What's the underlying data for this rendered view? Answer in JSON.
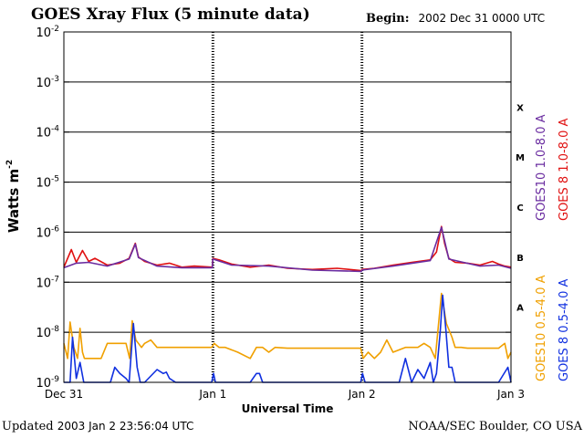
{
  "header": {
    "title": "GOES Xray Flux (5 minute data)",
    "begin_label": "Begin:",
    "begin_value": "2002 Dec 31 0000 UTC"
  },
  "footer": {
    "updated_label": "Updated",
    "updated_value": "2003 Jan  2 23:56:04 UTC",
    "credit": "NOAA/SEC Boulder, CO USA"
  },
  "chart_data": {
    "type": "line",
    "title": "GOES Xray Flux (5 minute data)",
    "xlabel": "Universal Time",
    "ylabel": "Watts m",
    "ylabel_sup": "-2",
    "y_scale": "log",
    "y_decades": [
      {
        "base": "10",
        "exp": "-2"
      },
      {
        "base": "10",
        "exp": "-3"
      },
      {
        "base": "10",
        "exp": "-4"
      },
      {
        "base": "10",
        "exp": "-5"
      },
      {
        "base": "10",
        "exp": "-6"
      },
      {
        "base": "10",
        "exp": "-7"
      },
      {
        "base": "10",
        "exp": "-8"
      },
      {
        "base": "10",
        "exp": "-9"
      }
    ],
    "ylim": [
      1e-09,
      0.01
    ],
    "x_tick_labels": [
      "Dec 31",
      "Jan 1",
      "Jan 2",
      "Jan 3"
    ],
    "xlim_hours": [
      0,
      72
    ],
    "flare_classes": [
      "X",
      "M",
      "C",
      "B",
      "A"
    ],
    "grid": "horizontal decade lines and dotted day separators",
    "legend_right": {
      "long": [
        "GOES10 1.0-8.0 A",
        "GOES 8 1.0-8.0 A"
      ],
      "short": [
        "GOES10 0.5-4.0 A",
        "GOES 8 0.5-4.0 A"
      ]
    },
    "colors": {
      "goes10_long": "#6a2ca0",
      "goes8_long": "#e01010",
      "goes10_short": "#f0a000",
      "goes8_short": "#1030e0",
      "axes": "#000000"
    },
    "series": [
      {
        "name": "GOES 8 1.0-8.0 A",
        "color": "#e01010",
        "x": [
          0,
          1.2,
          2,
          3,
          4,
          5,
          7,
          9,
          10.5,
          11.5,
          12,
          13,
          15,
          17,
          19,
          21,
          23.9,
          24,
          25,
          27,
          30,
          33,
          36,
          40,
          44,
          46,
          47.9,
          48,
          50,
          53,
          56,
          59,
          60,
          60.8,
          61.3,
          62,
          63,
          65,
          67,
          69,
          70,
          71,
          72
        ],
        "y": [
          2e-07,
          4.5e-07,
          2.5e-07,
          4.3e-07,
          2.6e-07,
          3e-07,
          2.2e-07,
          2.4e-07,
          3e-07,
          6e-07,
          3.2e-07,
          2.6e-07,
          2.2e-07,
          2.4e-07,
          2e-07,
          2.1e-07,
          2e-07,
          3e-07,
          2.8e-07,
          2.3e-07,
          2e-07,
          2.2e-07,
          1.9e-07,
          1.8e-07,
          1.9e-07,
          1.8e-07,
          1.7e-07,
          1.8e-07,
          1.9e-07,
          2.2e-07,
          2.5e-07,
          2.8e-07,
          4e-07,
          1.3e-06,
          6e-07,
          3e-07,
          2.5e-07,
          2.4e-07,
          2.2e-07,
          2.6e-07,
          2.3e-07,
          2.1e-07,
          2e-07
        ]
      },
      {
        "name": "GOES10 1.0-8.0 A",
        "color": "#6a2ca0",
        "x": [
          0,
          2,
          4,
          7,
          10.5,
          11.5,
          12,
          15,
          19,
          23.9,
          24,
          27,
          33,
          40,
          47.9,
          48,
          53,
          59,
          60.8,
          62,
          67,
          70,
          72
        ],
        "y": [
          1.95e-07,
          2.4e-07,
          2.5e-07,
          2.1e-07,
          2.9e-07,
          5.8e-07,
          3.1e-07,
          2.1e-07,
          1.95e-07,
          1.95e-07,
          2.9e-07,
          2.2e-07,
          2.1e-07,
          1.75e-07,
          1.65e-07,
          1.75e-07,
          2.1e-07,
          2.7e-07,
          1.25e-06,
          2.9e-07,
          2.1e-07,
          2.2e-07,
          1.9e-07
        ]
      },
      {
        "name": "GOES10 0.5-4.0 A",
        "color": "#f0a000",
        "x": [
          0,
          0.6,
          1.0,
          1.6,
          2.2,
          2.6,
          3.0,
          3.3,
          4.0,
          5,
          6,
          7,
          8,
          9,
          10,
          10.6,
          11.0,
          11.6,
          12,
          12.5,
          13,
          14,
          15,
          16,
          17,
          18,
          20,
          23.8,
          24.2,
          25,
          26,
          28,
          30,
          31,
          32,
          33,
          34,
          36,
          38,
          40,
          42,
          44,
          46,
          47.8,
          48.2,
          49,
          50,
          51,
          52,
          53,
          55,
          57,
          58,
          59,
          59.8,
          60.8,
          61.6,
          62.5,
          63,
          64,
          65,
          66,
          68,
          70,
          71,
          71.5,
          72
        ],
        "y": [
          6e-09,
          3e-09,
          1.6e-08,
          5e-09,
          3e-09,
          1.2e-08,
          4e-09,
          3e-09,
          3e-09,
          3e-09,
          3e-09,
          6e-09,
          6e-09,
          6e-09,
          6e-09,
          3e-09,
          1.7e-08,
          7e-09,
          6e-09,
          5e-09,
          6e-09,
          7e-09,
          5e-09,
          5e-09,
          5e-09,
          5e-09,
          5e-09,
          5e-09,
          6e-09,
          5e-09,
          5e-09,
          4e-09,
          3e-09,
          5e-09,
          5e-09,
          4e-09,
          5e-09,
          4.8e-09,
          4.8e-09,
          4.8e-09,
          4.8e-09,
          4.8e-09,
          4.8e-09,
          4.8e-09,
          3e-09,
          4e-09,
          3e-09,
          4e-09,
          7e-09,
          4e-09,
          5e-09,
          5e-09,
          6e-09,
          5e-09,
          3e-09,
          6e-08,
          1.5e-08,
          8e-09,
          5e-09,
          5e-09,
          4.8e-09,
          4.8e-09,
          4.8e-09,
          4.8e-09,
          6e-09,
          3e-09,
          4e-09
        ]
      },
      {
        "name": "GOES 8 0.5-4.0 A",
        "color": "#1030e0",
        "x": [
          0,
          1.0,
          1.4,
          2.0,
          2.6,
          3.2,
          4,
          6,
          7.5,
          8.2,
          9,
          10,
          10.5,
          11.2,
          11.8,
          12.3,
          13,
          15,
          16,
          16.5,
          17,
          18,
          20,
          23.8,
          24.1,
          24.4,
          25,
          26,
          28,
          30,
          31,
          31.5,
          32,
          34,
          40,
          47.8,
          48.1,
          48.5,
          49,
          50,
          52,
          54,
          55,
          56,
          57,
          58,
          59,
          59.5,
          60,
          60.6,
          61.0,
          61.5,
          62,
          62.5,
          63,
          64,
          66,
          70,
          71.5,
          72
        ],
        "y": [
          1e-09,
          1e-09,
          8e-09,
          1.2e-09,
          2.5e-09,
          1e-09,
          1e-09,
          1e-09,
          1e-09,
          2e-09,
          1.5e-09,
          1.2e-09,
          1e-09,
          1.5e-08,
          2e-09,
          1e-09,
          1e-09,
          1.8e-09,
          1.5e-09,
          1.6e-09,
          1.2e-09,
          1e-09,
          1e-09,
          1e-09,
          1.5e-09,
          1e-09,
          1e-09,
          1e-09,
          1e-09,
          1e-09,
          1.5e-09,
          1.5e-09,
          1e-09,
          1e-09,
          1e-09,
          1e-09,
          1.5e-09,
          1e-09,
          1e-09,
          1e-09,
          1e-09,
          1e-09,
          3e-09,
          1e-09,
          1.8e-09,
          1.2e-09,
          2.5e-09,
          1e-09,
          1.5e-09,
          1e-08,
          5.5e-08,
          1.2e-08,
          2e-09,
          2e-09,
          1e-09,
          1e-09,
          1e-09,
          1e-09,
          2e-09,
          1e-09
        ]
      }
    ]
  }
}
